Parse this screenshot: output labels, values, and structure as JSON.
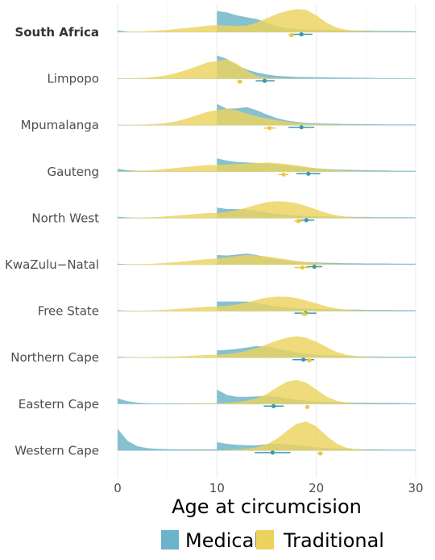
{
  "chart_data": {
    "type": "area",
    "subtype": "ridgeline-density",
    "xlabel": "Age at circumcision",
    "xlim": [
      0,
      30
    ],
    "xticks": [
      0,
      10,
      20,
      30
    ],
    "grid": true,
    "legend_position": "bottom",
    "legend": [
      {
        "name": "Medical",
        "color": "#6bb3c8"
      },
      {
        "name": "Traditional",
        "color": "#ecd35e"
      }
    ],
    "x": [
      0,
      1,
      2,
      3,
      4,
      5,
      6,
      7,
      8,
      9,
      9.99,
      10,
      11,
      12,
      13,
      14,
      15,
      16,
      17,
      18,
      19,
      20,
      21,
      22,
      23,
      24,
      25,
      26,
      27,
      28,
      29,
      30
    ],
    "rows": [
      {
        "name": "South Africa",
        "bold": true,
        "medical": [
          0.08,
          0.03,
          0.02,
          0.01,
          0.01,
          0.01,
          0.01,
          0.01,
          0.01,
          0.01,
          0.01,
          0.88,
          0.82,
          0.7,
          0.62,
          0.55,
          0.4,
          0.25,
          0.17,
          0.13,
          0.11,
          0.1,
          0.09,
          0.08,
          0.08,
          0.07,
          0.07,
          0.06,
          0.06,
          0.06,
          0.05,
          0.05
        ],
        "traditional": [
          0.01,
          0.02,
          0.03,
          0.05,
          0.07,
          0.1,
          0.14,
          0.18,
          0.22,
          0.27,
          0.3,
          0.3,
          0.28,
          0.26,
          0.28,
          0.4,
          0.58,
          0.75,
          0.88,
          0.96,
          0.92,
          0.7,
          0.4,
          0.2,
          0.1,
          0.06,
          0.04,
          0.03,
          0.02,
          0.02,
          0.01,
          0.01
        ],
        "means": {
          "medical": {
            "value": 18.5,
            "ci": [
              17.4,
              19.6
            ]
          },
          "traditional": {
            "value": 17.5,
            "ci": [
              17.2,
              17.8
            ]
          }
        }
      },
      {
        "name": "Limpopo",
        "bold": false,
        "medical": [
          0.02,
          0.01,
          0.01,
          0.01,
          0.01,
          0.01,
          0.01,
          0.01,
          0.01,
          0.01,
          0.01,
          0.96,
          0.82,
          0.55,
          0.38,
          0.26,
          0.18,
          0.12,
          0.1,
          0.08,
          0.07,
          0.06,
          0.06,
          0.05,
          0.05,
          0.04,
          0.04,
          0.03,
          0.03,
          0.03,
          0.02,
          0.02
        ],
        "traditional": [
          0.01,
          0.02,
          0.03,
          0.05,
          0.09,
          0.15,
          0.25,
          0.37,
          0.52,
          0.67,
          0.73,
          0.73,
          0.8,
          0.62,
          0.33,
          0.12,
          0.04,
          0.02,
          0.01,
          0.01,
          0.0,
          0.0,
          0.0,
          0.0,
          0.0,
          0.0,
          0.0,
          0.0,
          0.0,
          0.0,
          0.0,
          0.0
        ],
        "means": {
          "medical": {
            "value": 14.8,
            "ci": [
              13.9,
              15.8
            ]
          },
          "traditional": {
            "value": 12.3,
            "ci": [
              12.0,
              12.6
            ]
          }
        }
      },
      {
        "name": "Mpumalanga",
        "bold": false,
        "medical": [
          0.02,
          0.01,
          0.01,
          0.01,
          0.01,
          0.01,
          0.01,
          0.01,
          0.01,
          0.01,
          0.01,
          0.88,
          0.68,
          0.7,
          0.75,
          0.62,
          0.45,
          0.3,
          0.2,
          0.14,
          0.1,
          0.08,
          0.07,
          0.06,
          0.05,
          0.05,
          0.04,
          0.04,
          0.03,
          0.03,
          0.03,
          0.03
        ],
        "traditional": [
          0.01,
          0.01,
          0.02,
          0.03,
          0.06,
          0.1,
          0.17,
          0.28,
          0.42,
          0.55,
          0.62,
          0.62,
          0.68,
          0.62,
          0.48,
          0.36,
          0.28,
          0.21,
          0.15,
          0.1,
          0.07,
          0.05,
          0.03,
          0.02,
          0.01,
          0.01,
          0.01,
          0.0,
          0.0,
          0.0,
          0.0,
          0.0
        ],
        "means": {
          "medical": {
            "value": 18.5,
            "ci": [
              17.2,
              19.8
            ]
          },
          "traditional": {
            "value": 15.3,
            "ci": [
              14.7,
              15.9
            ]
          }
        }
      },
      {
        "name": "Gauteng",
        "bold": false,
        "medical": [
          0.12,
          0.06,
          0.04,
          0.03,
          0.02,
          0.02,
          0.02,
          0.02,
          0.02,
          0.02,
          0.02,
          0.55,
          0.46,
          0.4,
          0.38,
          0.36,
          0.34,
          0.3,
          0.26,
          0.22,
          0.18,
          0.14,
          0.11,
          0.09,
          0.08,
          0.07,
          0.06,
          0.05,
          0.05,
          0.04,
          0.04,
          0.04
        ],
        "traditional": [
          0.01,
          0.02,
          0.03,
          0.05,
          0.08,
          0.12,
          0.16,
          0.2,
          0.24,
          0.27,
          0.28,
          0.28,
          0.3,
          0.32,
          0.34,
          0.36,
          0.38,
          0.36,
          0.32,
          0.26,
          0.2,
          0.14,
          0.09,
          0.06,
          0.04,
          0.03,
          0.02,
          0.01,
          0.01,
          0.01,
          0.0,
          0.0
        ],
        "means": {
          "medical": {
            "value": 19.2,
            "ci": [
              18.0,
              20.4
            ]
          },
          "traditional": {
            "value": 16.7,
            "ci": [
              16.2,
              17.2
            ]
          }
        }
      },
      {
        "name": "North West",
        "bold": false,
        "medical": [
          0.06,
          0.03,
          0.02,
          0.02,
          0.02,
          0.02,
          0.02,
          0.02,
          0.02,
          0.02,
          0.02,
          0.44,
          0.38,
          0.38,
          0.36,
          0.3,
          0.24,
          0.18,
          0.14,
          0.11,
          0.09,
          0.08,
          0.07,
          0.06,
          0.06,
          0.05,
          0.05,
          0.04,
          0.04,
          0.04,
          0.04,
          0.03
        ],
        "traditional": [
          0.01,
          0.01,
          0.02,
          0.03,
          0.05,
          0.08,
          0.11,
          0.14,
          0.18,
          0.21,
          0.22,
          0.22,
          0.26,
          0.34,
          0.44,
          0.56,
          0.66,
          0.7,
          0.68,
          0.62,
          0.5,
          0.36,
          0.22,
          0.12,
          0.06,
          0.03,
          0.02,
          0.01,
          0.01,
          0.0,
          0.0,
          0.0
        ],
        "means": {
          "medical": {
            "value": 19.0,
            "ci": [
              18.2,
              19.8
            ]
          },
          "traditional": {
            "value": 18.2,
            "ci": [
              17.8,
              18.6
            ]
          }
        }
      },
      {
        "name": "KwaZulu−Natal",
        "bold": false,
        "medical": [
          0.04,
          0.02,
          0.02,
          0.01,
          0.01,
          0.01,
          0.01,
          0.01,
          0.01,
          0.01,
          0.01,
          0.4,
          0.38,
          0.42,
          0.46,
          0.4,
          0.3,
          0.22,
          0.16,
          0.12,
          0.1,
          0.09,
          0.08,
          0.07,
          0.06,
          0.06,
          0.05,
          0.05,
          0.05,
          0.04,
          0.04,
          0.04
        ],
        "traditional": [
          0.01,
          0.01,
          0.02,
          0.03,
          0.05,
          0.08,
          0.11,
          0.15,
          0.19,
          0.23,
          0.25,
          0.25,
          0.3,
          0.36,
          0.4,
          0.38,
          0.34,
          0.28,
          0.22,
          0.16,
          0.11,
          0.07,
          0.04,
          0.02,
          0.01,
          0.01,
          0.0,
          0.0,
          0.0,
          0.0,
          0.0,
          0.0
        ],
        "means": {
          "medical": {
            "value": 19.8,
            "ci": [
              19.0,
              20.6
            ]
          },
          "traditional": {
            "value": 18.6,
            "ci": [
              17.8,
              19.4
            ]
          }
        }
      },
      {
        "name": "Free State",
        "bold": false,
        "medical": [
          0.04,
          0.02,
          0.02,
          0.01,
          0.01,
          0.01,
          0.01,
          0.01,
          0.01,
          0.01,
          0.01,
          0.4,
          0.4,
          0.4,
          0.4,
          0.34,
          0.26,
          0.2,
          0.15,
          0.12,
          0.1,
          0.09,
          0.08,
          0.07,
          0.06,
          0.06,
          0.05,
          0.05,
          0.05,
          0.04,
          0.04,
          0.04
        ],
        "traditional": [
          0.01,
          0.01,
          0.02,
          0.03,
          0.04,
          0.06,
          0.09,
          0.12,
          0.15,
          0.18,
          0.19,
          0.19,
          0.22,
          0.28,
          0.36,
          0.46,
          0.56,
          0.6,
          0.6,
          0.54,
          0.44,
          0.32,
          0.2,
          0.11,
          0.06,
          0.03,
          0.02,
          0.01,
          0.01,
          0.0,
          0.0,
          0.0
        ],
        "means": {
          "medical": {
            "value": 18.9,
            "ci": [
              17.8,
              20.0
            ]
          },
          "traditional": {
            "value": 18.8,
            "ci": [
              18.4,
              19.2
            ]
          }
        }
      },
      {
        "name": "Northern Cape",
        "bold": false,
        "medical": [
          0.04,
          0.02,
          0.02,
          0.01,
          0.01,
          0.01,
          0.01,
          0.01,
          0.01,
          0.01,
          0.01,
          0.3,
          0.32,
          0.36,
          0.42,
          0.48,
          0.45,
          0.38,
          0.3,
          0.22,
          0.16,
          0.12,
          0.1,
          0.08,
          0.07,
          0.06,
          0.05,
          0.05,
          0.04,
          0.04,
          0.04,
          0.04
        ],
        "traditional": [
          0.01,
          0.01,
          0.02,
          0.02,
          0.03,
          0.04,
          0.05,
          0.07,
          0.09,
          0.11,
          0.12,
          0.12,
          0.15,
          0.2,
          0.28,
          0.4,
          0.55,
          0.7,
          0.82,
          0.88,
          0.82,
          0.66,
          0.44,
          0.24,
          0.12,
          0.06,
          0.03,
          0.02,
          0.01,
          0.01,
          0.0,
          0.0
        ],
        "means": {
          "medical": {
            "value": 18.7,
            "ci": [
              17.6,
              19.8
            ]
          },
          "traditional": {
            "value": 19.3,
            "ci": [
              19.0,
              19.6
            ]
          }
        }
      },
      {
        "name": "Eastern Cape",
        "bold": false,
        "medical": [
          0.24,
          0.12,
          0.06,
          0.04,
          0.03,
          0.03,
          0.03,
          0.03,
          0.03,
          0.03,
          0.03,
          0.6,
          0.38,
          0.3,
          0.3,
          0.32,
          0.34,
          0.3,
          0.24,
          0.18,
          0.14,
          0.11,
          0.09,
          0.08,
          0.07,
          0.06,
          0.06,
          0.05,
          0.05,
          0.05,
          0.04,
          0.04
        ],
        "traditional": [
          0.0,
          0.0,
          0.0,
          0.0,
          0.0,
          0.01,
          0.01,
          0.02,
          0.02,
          0.03,
          0.03,
          0.03,
          0.05,
          0.08,
          0.14,
          0.24,
          0.42,
          0.68,
          0.92,
          1.0,
          0.88,
          0.6,
          0.32,
          0.14,
          0.06,
          0.03,
          0.02,
          0.01,
          0.0,
          0.0,
          0.0,
          0.0
        ],
        "means": {
          "medical": {
            "value": 15.7,
            "ci": [
              14.7,
              16.7
            ]
          },
          "traditional": {
            "value": 19.1,
            "ci": [
              18.9,
              19.3
            ]
          }
        }
      },
      {
        "name": "Western Cape",
        "bold": false,
        "medical": [
          0.9,
          0.4,
          0.18,
          0.1,
          0.07,
          0.06,
          0.05,
          0.05,
          0.05,
          0.05,
          0.05,
          0.35,
          0.28,
          0.24,
          0.22,
          0.22,
          0.26,
          0.28,
          0.26,
          0.22,
          0.18,
          0.14,
          0.11,
          0.09,
          0.07,
          0.06,
          0.05,
          0.05,
          0.04,
          0.04,
          0.04,
          0.04
        ],
        "traditional": [
          0.0,
          0.0,
          0.0,
          0.0,
          0.0,
          0.0,
          0.0,
          0.01,
          0.01,
          0.01,
          0.01,
          0.01,
          0.02,
          0.04,
          0.08,
          0.14,
          0.26,
          0.48,
          0.8,
          1.1,
          1.2,
          1.0,
          0.62,
          0.3,
          0.12,
          0.05,
          0.02,
          0.01,
          0.0,
          0.0,
          0.0,
          0.0
        ],
        "means": {
          "medical": {
            "value": 15.6,
            "ci": [
              13.8,
              17.4
            ]
          },
          "traditional": {
            "value": 20.4,
            "ci": [
              20.1,
              20.7
            ]
          }
        }
      }
    ]
  }
}
